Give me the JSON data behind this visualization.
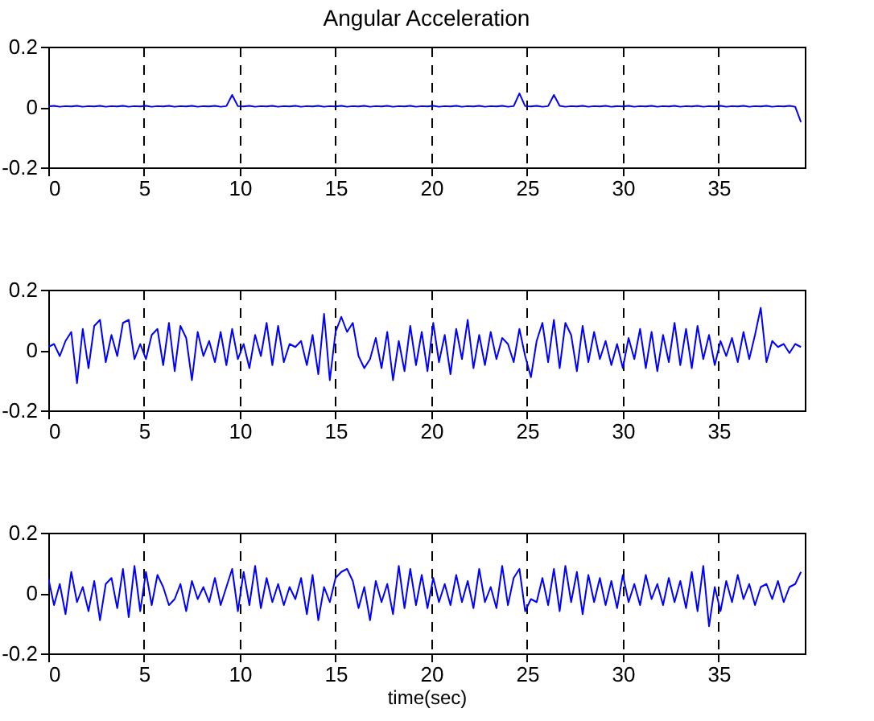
{
  "chart_data": [
    {
      "type": "line",
      "title": "Angular Acceleration",
      "x": [
        0,
        0.3,
        0.6,
        0.9,
        1.2,
        1.5,
        1.8,
        2.1,
        2.4,
        2.7,
        3,
        3.3,
        3.6,
        3.9,
        4.2,
        4.5,
        4.8,
        5.1,
        5.4,
        5.7,
        6,
        6.3,
        6.6,
        6.9,
        7.2,
        7.5,
        7.8,
        8.1,
        8.4,
        8.7,
        9,
        9.3,
        9.6,
        9.9,
        10.2,
        10.5,
        10.8,
        11.1,
        11.4,
        11.7,
        12,
        12.3,
        12.6,
        12.9,
        13.2,
        13.5,
        13.8,
        14.1,
        14.4,
        14.7,
        15,
        15.3,
        15.6,
        15.9,
        16.2,
        16.5,
        16.8,
        17.1,
        17.4,
        17.7,
        18,
        18.3,
        18.6,
        18.9,
        19.2,
        19.5,
        19.8,
        20.1,
        20.4,
        20.7,
        21,
        21.3,
        21.6,
        21.9,
        22.2,
        22.5,
        22.8,
        23.1,
        23.4,
        23.7,
        24,
        24.3,
        24.6,
        24.9,
        25.2,
        25.5,
        25.8,
        26.1,
        26.4,
        26.7,
        27,
        27.3,
        27.6,
        27.9,
        28.2,
        28.5,
        28.8,
        29.1,
        29.4,
        29.7,
        30,
        30.3,
        30.6,
        30.9,
        31.2,
        31.5,
        31.8,
        32.1,
        32.4,
        32.7,
        33,
        33.3,
        33.6,
        33.9,
        34.2,
        34.5,
        34.8,
        35.1,
        35.4,
        35.7,
        36,
        36.3,
        36.6,
        36.9,
        37.2,
        37.5,
        37.8,
        38.1,
        38.4,
        38.7,
        39,
        39.3
      ],
      "series": [
        {
          "color": "#0000ff",
          "values": [
            0.002,
            0.004,
            0.001,
            0.003,
            0.002,
            0.004,
            0.001,
            0.003,
            0.002,
            0.004,
            0.001,
            0.003,
            0.002,
            0.004,
            0.001,
            0.003,
            0.002,
            0.004,
            0.001,
            0.003,
            0.002,
            0.004,
            0.001,
            0.003,
            0.002,
            0.004,
            0.001,
            0.003,
            0.002,
            0.004,
            0.001,
            0.003,
            0.04,
            0.003,
            0.002,
            0.004,
            0.001,
            0.003,
            0.002,
            0.004,
            0.001,
            0.003,
            0.002,
            0.004,
            0.001,
            0.003,
            0.002,
            0.004,
            0.001,
            0.003,
            0.002,
            0.004,
            0.001,
            0.003,
            0.002,
            0.004,
            0.001,
            0.003,
            0.002,
            0.004,
            0.001,
            0.003,
            0.002,
            0.004,
            0.001,
            0.003,
            0.002,
            0.004,
            0.001,
            0.003,
            0.002,
            0.004,
            0.001,
            0.003,
            0.002,
            0.004,
            0.001,
            0.003,
            0.002,
            0.004,
            0.001,
            0.003,
            0.045,
            0.003,
            0.002,
            0.004,
            0.001,
            0.003,
            0.04,
            0.004,
            0.001,
            0.003,
            0.002,
            0.004,
            0.001,
            0.003,
            0.002,
            0.004,
            0.001,
            0.003,
            0.002,
            0.004,
            0.001,
            0.003,
            0.002,
            0.004,
            0.001,
            0.003,
            0.002,
            0.004,
            0.001,
            0.003,
            0.002,
            0.004,
            0.001,
            0.003,
            0.002,
            0.004,
            0.001,
            0.003,
            0.002,
            0.004,
            0.001,
            0.003,
            0.002,
            0.004,
            0.001,
            0.003,
            0.002,
            0.004,
            0.001,
            -0.05
          ]
        }
      ],
      "xlim": [
        0,
        39.5
      ],
      "xticks": [
        0,
        5,
        10,
        15,
        20,
        25,
        30,
        35
      ],
      "ylim": [
        -0.2,
        0.2
      ],
      "yticks": [
        -0.2,
        0,
        0.2
      ],
      "grid": "x"
    },
    {
      "type": "line",
      "x": [
        0,
        0.3,
        0.6,
        0.9,
        1.2,
        1.5,
        1.8,
        2.1,
        2.4,
        2.7,
        3,
        3.3,
        3.6,
        3.9,
        4.2,
        4.5,
        4.8,
        5.1,
        5.4,
        5.7,
        6,
        6.3,
        6.6,
        6.9,
        7.2,
        7.5,
        7.8,
        8.1,
        8.4,
        8.7,
        9,
        9.3,
        9.6,
        9.9,
        10.2,
        10.5,
        10.8,
        11.1,
        11.4,
        11.7,
        12,
        12.3,
        12.6,
        12.9,
        13.2,
        13.5,
        13.8,
        14.1,
        14.4,
        14.7,
        15,
        15.3,
        15.6,
        15.9,
        16.2,
        16.5,
        16.8,
        17.1,
        17.4,
        17.7,
        18,
        18.3,
        18.6,
        18.9,
        19.2,
        19.5,
        19.8,
        20.1,
        20.4,
        20.7,
        21,
        21.3,
        21.6,
        21.9,
        22.2,
        22.5,
        22.8,
        23.1,
        23.4,
        23.7,
        24,
        24.3,
        24.6,
        24.9,
        25.2,
        25.5,
        25.8,
        26.1,
        26.4,
        26.7,
        27,
        27.3,
        27.6,
        27.9,
        28.2,
        28.5,
        28.8,
        29.1,
        29.4,
        29.7,
        30,
        30.3,
        30.6,
        30.9,
        31.2,
        31.5,
        31.8,
        32.1,
        32.4,
        32.7,
        33,
        33.3,
        33.6,
        33.9,
        34.2,
        34.5,
        34.8,
        35.1,
        35.4,
        35.7,
        36,
        36.3,
        36.6,
        36.9,
        37.2,
        37.5,
        37.8,
        38.1,
        38.4,
        38.7,
        39,
        39.3
      ],
      "series": [
        {
          "color": "#0000ff",
          "values": [
            0.01,
            0.02,
            -0.02,
            0.03,
            0.06,
            -0.11,
            0.07,
            -0.06,
            0.08,
            0.1,
            -0.04,
            0.05,
            -0.02,
            0.09,
            0.1,
            -0.03,
            0.02,
            -0.03,
            0.05,
            0.07,
            -0.05,
            0.09,
            -0.07,
            0.08,
            0.04,
            -0.1,
            0.06,
            -0.02,
            0.03,
            -0.04,
            0.06,
            -0.05,
            0.07,
            -0.03,
            0.02,
            -0.06,
            0.05,
            -0.02,
            0.09,
            -0.05,
            0.08,
            -0.04,
            0.02,
            0.01,
            0.03,
            -0.05,
            0.05,
            -0.08,
            0.12,
            -0.1,
            0.06,
            0.11,
            0.06,
            0.09,
            -0.02,
            -0.06,
            -0.03,
            0.04,
            -0.06,
            0.06,
            -0.1,
            0.03,
            -0.07,
            0.08,
            -0.05,
            0.06,
            -0.07,
            0.09,
            -0.04,
            0.05,
            -0.08,
            0.07,
            -0.03,
            0.1,
            -0.06,
            0.05,
            -0.05,
            0.06,
            -0.03,
            0.04,
            0.02,
            -0.04,
            0.07,
            -0.02,
            -0.09,
            0.03,
            0.09,
            -0.04,
            0.1,
            -0.06,
            0.09,
            0.05,
            -0.07,
            0.08,
            -0.04,
            0.06,
            -0.03,
            0.03,
            -0.05,
            0.02,
            -0.06,
            0.04,
            -0.03,
            0.07,
            -0.06,
            0.06,
            -0.07,
            0.05,
            -0.04,
            0.09,
            -0.05,
            0.07,
            -0.06,
            0.08,
            -0.03,
            0.05,
            -0.05,
            0.03,
            -0.02,
            0.04,
            -0.04,
            0.06,
            -0.03,
            0.05,
            0.14,
            -0.04,
            0.03,
            0.01,
            0.02,
            -0.01,
            0.02,
            0.01
          ]
        }
      ],
      "xlim": [
        0,
        39.5
      ],
      "xticks": [
        0,
        5,
        10,
        15,
        20,
        25,
        30,
        35
      ],
      "ylim": [
        -0.2,
        0.2
      ],
      "yticks": [
        -0.2,
        0,
        0.2
      ],
      "grid": "x"
    },
    {
      "type": "line",
      "xlabel": "time(sec)",
      "x": [
        0,
        0.3,
        0.6,
        0.9,
        1.2,
        1.5,
        1.8,
        2.1,
        2.4,
        2.7,
        3,
        3.3,
        3.6,
        3.9,
        4.2,
        4.5,
        4.8,
        5.1,
        5.4,
        5.7,
        6,
        6.3,
        6.6,
        6.9,
        7.2,
        7.5,
        7.8,
        8.1,
        8.4,
        8.7,
        9,
        9.3,
        9.6,
        9.9,
        10.2,
        10.5,
        10.8,
        11.1,
        11.4,
        11.7,
        12,
        12.3,
        12.6,
        12.9,
        13.2,
        13.5,
        13.8,
        14.1,
        14.4,
        14.7,
        15,
        15.3,
        15.6,
        15.9,
        16.2,
        16.5,
        16.8,
        17.1,
        17.4,
        17.7,
        18,
        18.3,
        18.6,
        18.9,
        19.2,
        19.5,
        19.8,
        20.1,
        20.4,
        20.7,
        21,
        21.3,
        21.6,
        21.9,
        22.2,
        22.5,
        22.8,
        23.1,
        23.4,
        23.7,
        24,
        24.3,
        24.6,
        24.9,
        25.2,
        25.5,
        25.8,
        26.1,
        26.4,
        26.7,
        27,
        27.3,
        27.6,
        27.9,
        28.2,
        28.5,
        28.8,
        29.1,
        29.4,
        29.7,
        30,
        30.3,
        30.6,
        30.9,
        31.2,
        31.5,
        31.8,
        32.1,
        32.4,
        32.7,
        33,
        33.3,
        33.6,
        33.9,
        34.2,
        34.5,
        34.8,
        35.1,
        35.4,
        35.7,
        36,
        36.3,
        36.6,
        36.9,
        37.2,
        37.5,
        37.8,
        38.1,
        38.4,
        38.7,
        39,
        39.3
      ],
      "series": [
        {
          "color": "#0000ff",
          "values": [
            0.05,
            -0.04,
            0.03,
            -0.07,
            0.07,
            -0.03,
            0.02,
            -0.06,
            0.04,
            -0.09,
            0.03,
            0.05,
            -0.05,
            0.08,
            -0.08,
            0.09,
            -0.06,
            0.07,
            -0.04,
            0.06,
            0.02,
            -0.04,
            -0.02,
            0.03,
            -0.06,
            0.04,
            -0.02,
            0.02,
            -0.03,
            0.05,
            -0.04,
            0.02,
            0.08,
            -0.06,
            0.07,
            -0.04,
            0.09,
            -0.05,
            0.05,
            -0.03,
            0.03,
            -0.04,
            0.02,
            -0.02,
            0.05,
            -0.07,
            0.06,
            -0.09,
            0.02,
            -0.03,
            0.05,
            0.07,
            0.08,
            0.04,
            -0.05,
            0.02,
            -0.09,
            0.04,
            -0.03,
            0.03,
            -0.07,
            0.09,
            -0.05,
            0.08,
            -0.04,
            0.06,
            -0.05,
            0.05,
            -0.03,
            0.03,
            -0.04,
            0.06,
            -0.03,
            0.04,
            -0.05,
            0.08,
            -0.03,
            0.02,
            -0.05,
            0.09,
            -0.04,
            0.05,
            0.08,
            -0.06,
            -0.02,
            -0.03,
            0.05,
            -0.04,
            0.08,
            -0.06,
            0.09,
            -0.03,
            0.07,
            -0.07,
            0.06,
            -0.03,
            0.05,
            -0.04,
            0.04,
            -0.05,
            0.06,
            -0.03,
            0.03,
            -0.04,
            0.06,
            -0.02,
            0.03,
            -0.04,
            0.05,
            -0.03,
            0.04,
            -0.05,
            0.07,
            -0.06,
            0.09,
            -0.11,
            0.02,
            -0.06,
            0.04,
            -0.03,
            0.06,
            -0.02,
            0.03,
            -0.04,
            0.02,
            0.03,
            -0.02,
            0.04,
            -0.03,
            0.02,
            0.03,
            0.07
          ]
        }
      ],
      "xlim": [
        0,
        39.5
      ],
      "xticks": [
        0,
        5,
        10,
        15,
        20,
        25,
        30,
        35
      ],
      "ylim": [
        -0.2,
        0.2
      ],
      "yticks": [
        -0.2,
        0,
        0.2
      ],
      "grid": "x"
    }
  ]
}
